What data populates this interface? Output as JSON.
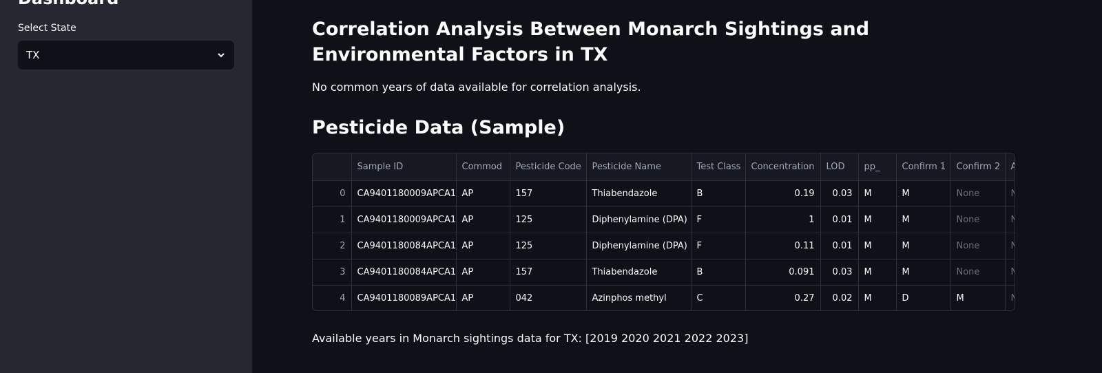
{
  "sidebar": {
    "title": "Dashboard",
    "select_label": "Select State",
    "select_value": "TX"
  },
  "main": {
    "title": "Correlation Analysis Between Monarch Sightings and Environmental Factors in TX",
    "message": "No common years of data available for correlation analysis.",
    "table_heading": "Pesticide Data (Sample)",
    "table": {
      "columns": [
        "",
        "Sample ID",
        "Commod",
        "Pesticide Code",
        "Pesticide Name",
        "Test Class",
        "Concentration",
        "LOD",
        "pp_",
        "Confirm 1",
        "Confirm 2",
        "A"
      ],
      "rows": [
        [
          "0",
          "CA9401180009APCA1",
          "AP",
          "157",
          "Thiabendazole",
          "B",
          "0.19",
          "0.03",
          "M",
          "M",
          "None",
          "None"
        ],
        [
          "1",
          "CA9401180009APCA1",
          "AP",
          "125",
          "Diphenylamine (DPA)",
          "F",
          "1",
          "0.01",
          "M",
          "M",
          "None",
          "None"
        ],
        [
          "2",
          "CA9401180084APCA1",
          "AP",
          "125",
          "Diphenylamine (DPA)",
          "F",
          "0.11",
          "0.01",
          "M",
          "M",
          "None",
          "None"
        ],
        [
          "3",
          "CA9401180084APCA1",
          "AP",
          "157",
          "Thiabendazole",
          "B",
          "0.091",
          "0.03",
          "M",
          "M",
          "None",
          "None"
        ],
        [
          "4",
          "CA9401180089APCA1",
          "AP",
          "042",
          "Azinphos methyl",
          "C",
          "0.27",
          "0.02",
          "M",
          "D",
          "M",
          "None"
        ]
      ]
    },
    "years_text": "Available years in Monarch sightings data for TX: [2019 2020 2021 2022 2023]"
  }
}
